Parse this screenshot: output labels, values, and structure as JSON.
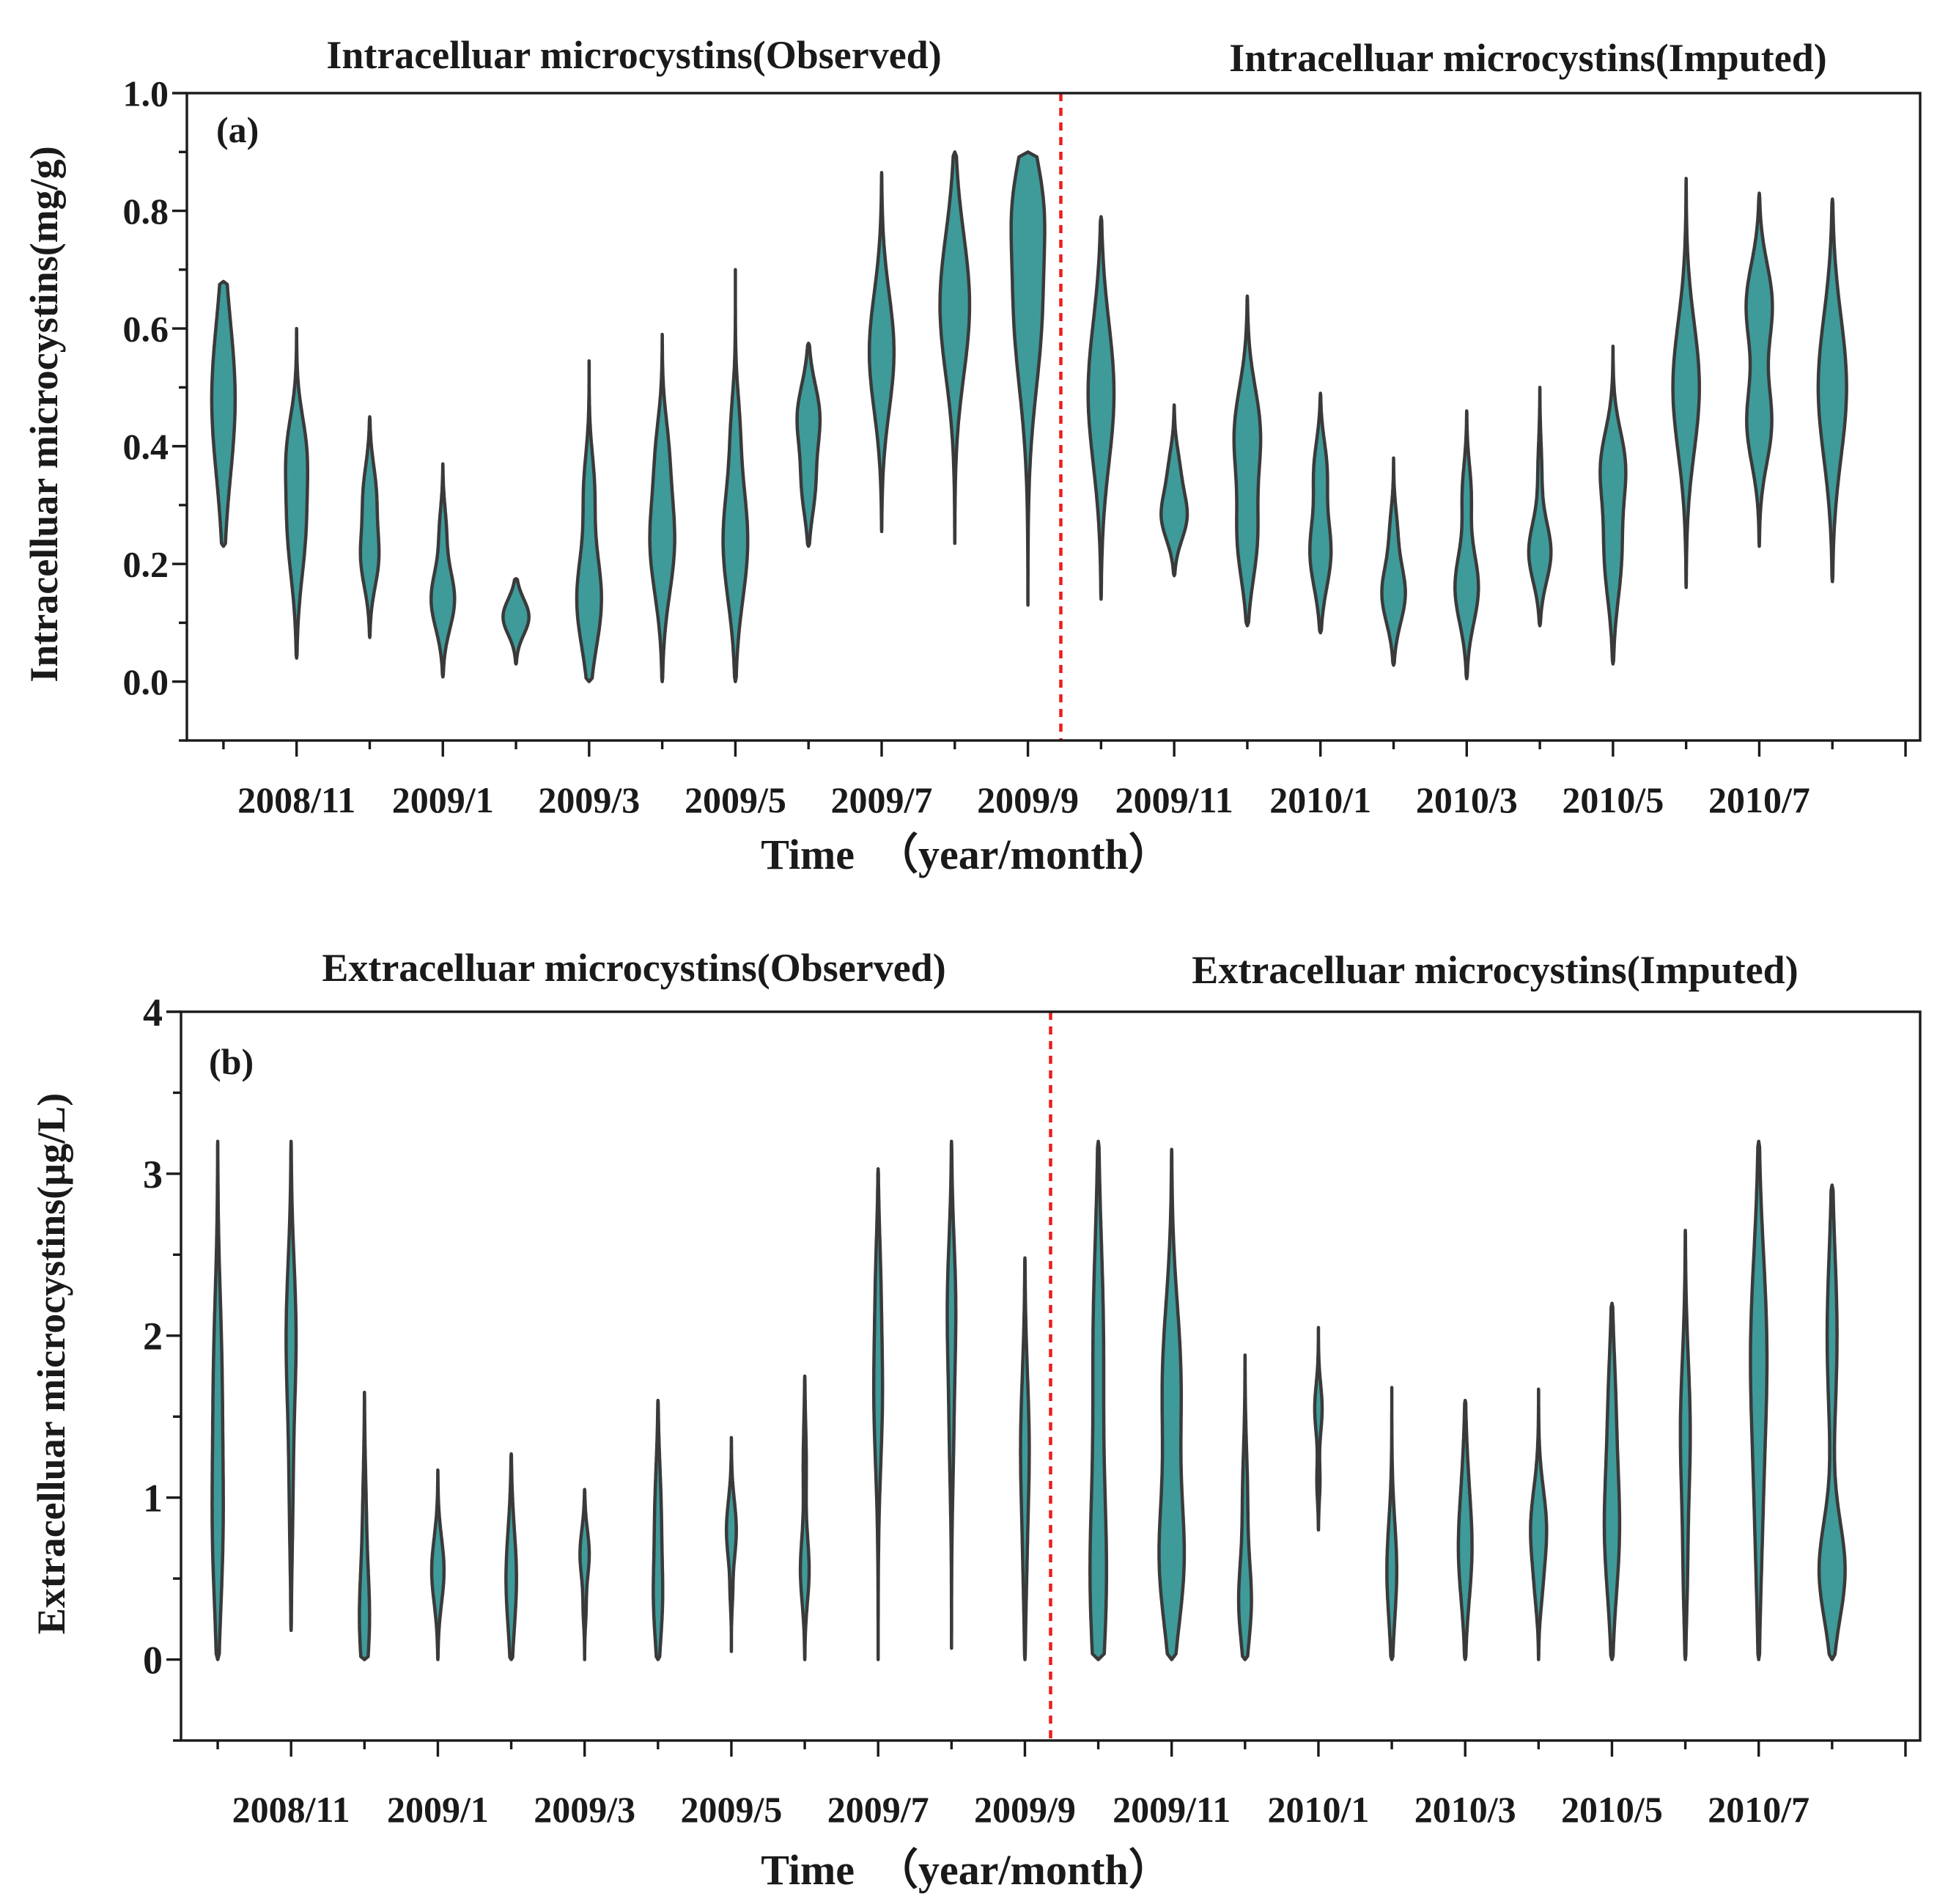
{
  "colors": {
    "violin_fill": "#3f9a9a",
    "violin_edge": "#3a3a3a",
    "divider": "#ee1c1c",
    "axis": "#1a1a1a"
  },
  "chart_data": [
    {
      "type": "violin",
      "panel_label": "(a)",
      "title_observed": "Intracelluar microcystins(Observed)",
      "title_imputed": "Intracelluar microcystins(Imputed)",
      "ylabel": "Intracelluar microcystins(mg/g)",
      "xlabel": "Time  （year/month）",
      "ylim": [
        -0.1,
        1.0
      ],
      "yticks": [
        0.0,
        0.2,
        0.4,
        0.6,
        0.8,
        1.0
      ],
      "ytick_labels": [
        "0.0",
        "0.2",
        "0.4",
        "0.6",
        "0.8",
        "1.0"
      ],
      "x_index_range": [
        -0.5,
        23.2
      ],
      "labeled_ticks": [
        {
          "i": 1,
          "label": "2008/11"
        },
        {
          "i": 3,
          "label": "2009/1"
        },
        {
          "i": 5,
          "label": "2009/3"
        },
        {
          "i": 7,
          "label": "2009/5"
        },
        {
          "i": 9,
          "label": "2009/7"
        },
        {
          "i": 11,
          "label": "2009/9"
        },
        {
          "i": 13,
          "label": "2009/11"
        },
        {
          "i": 15,
          "label": "2010/1"
        },
        {
          "i": 17,
          "label": "2010/3"
        },
        {
          "i": 19,
          "label": "2010/5"
        },
        {
          "i": 21,
          "label": "2010/7"
        }
      ],
      "divider_index": 11.45,
      "violins": [
        {
          "period": "2008/10",
          "min": 0.23,
          "max": 0.68,
          "peaks": [
            [
              0.48,
              0.38,
              0.13
            ]
          ]
        },
        {
          "period": "2008/11",
          "min": 0.04,
          "max": 0.6,
          "peaks": [
            [
              0.27,
              0.3,
              0.09
            ],
            [
              0.4,
              0.22,
              0.06
            ]
          ]
        },
        {
          "period": "2008/12",
          "min": 0.075,
          "max": 0.45,
          "peaks": [
            [
              0.21,
              0.28,
              0.05
            ],
            [
              0.32,
              0.2,
              0.05
            ]
          ]
        },
        {
          "period": "2009/1",
          "min": 0.008,
          "max": 0.37,
          "peaks": [
            [
              0.14,
              0.38,
              0.05
            ],
            [
              0.26,
              0.1,
              0.04
            ]
          ]
        },
        {
          "period": "2009/2",
          "min": 0.03,
          "max": 0.175,
          "peaks": [
            [
              0.11,
              0.42,
              0.03
            ]
          ]
        },
        {
          "period": "2009/3",
          "min": 0.0,
          "max": 0.545,
          "peaks": [
            [
              0.14,
              0.4,
              0.08
            ],
            [
              0.33,
              0.16,
              0.06
            ]
          ]
        },
        {
          "period": "2009/4",
          "min": 0.0,
          "max": 0.59,
          "peaks": [
            [
              0.24,
              0.4,
              0.09
            ],
            [
              0.4,
              0.14,
              0.06
            ]
          ]
        },
        {
          "period": "2009/5",
          "min": 0.0,
          "max": 0.7,
          "peaks": [
            [
              0.24,
              0.4,
              0.1
            ],
            [
              0.44,
              0.1,
              0.06
            ]
          ]
        },
        {
          "period": "2009/6",
          "min": 0.23,
          "max": 0.575,
          "peaks": [
            [
              0.45,
              0.36,
              0.055
            ],
            [
              0.33,
              0.2,
              0.05
            ]
          ]
        },
        {
          "period": "2009/7",
          "min": 0.255,
          "max": 0.865,
          "peaks": [
            [
              0.56,
              0.4,
              0.1
            ]
          ]
        },
        {
          "period": "2009/8",
          "min": 0.235,
          "max": 0.9,
          "peaks": [
            [
              0.64,
              0.48,
              0.12
            ]
          ]
        },
        {
          "period": "2009/9",
          "min": 0.13,
          "max": 0.9,
          "peaks": [
            [
              0.64,
              0.46,
              0.14
            ],
            [
              0.82,
              0.3,
              0.08
            ]
          ]
        },
        {
          "period": "2009/10",
          "min": 0.14,
          "max": 0.79,
          "peaks": [
            [
              0.49,
              0.42,
              0.12
            ]
          ]
        },
        {
          "period": "2009/11",
          "min": 0.18,
          "max": 0.47,
          "peaks": [
            [
              0.28,
              0.4,
              0.04
            ],
            [
              0.36,
              0.16,
              0.04
            ]
          ]
        },
        {
          "period": "2009/12",
          "min": 0.095,
          "max": 0.655,
          "peaks": [
            [
              0.24,
              0.3,
              0.07
            ],
            [
              0.42,
              0.42,
              0.08
            ]
          ]
        },
        {
          "period": "2010/1",
          "min": 0.083,
          "max": 0.49,
          "peaks": [
            [
              0.22,
              0.34,
              0.06
            ],
            [
              0.36,
              0.2,
              0.05
            ]
          ]
        },
        {
          "period": "2010/2",
          "min": 0.028,
          "max": 0.38,
          "peaks": [
            [
              0.15,
              0.38,
              0.05
            ],
            [
              0.26,
              0.1,
              0.04
            ]
          ]
        },
        {
          "period": "2010/3",
          "min": 0.005,
          "max": 0.46,
          "peaks": [
            [
              0.16,
              0.38,
              0.06
            ],
            [
              0.32,
              0.14,
              0.05
            ]
          ]
        },
        {
          "period": "2010/4",
          "min": 0.095,
          "max": 0.5,
          "peaks": [
            [
              0.22,
              0.36,
              0.05
            ],
            [
              0.36,
              0.06,
              0.05
            ]
          ]
        },
        {
          "period": "2010/5",
          "min": 0.03,
          "max": 0.57,
          "peaks": [
            [
              0.22,
              0.28,
              0.08
            ],
            [
              0.37,
              0.36,
              0.06
            ]
          ]
        },
        {
          "period": "2010/6",
          "min": 0.16,
          "max": 0.855,
          "peaks": [
            [
              0.5,
              0.43,
              0.11
            ]
          ]
        },
        {
          "period": "2010/7",
          "min": 0.23,
          "max": 0.83,
          "peaks": [
            [
              0.44,
              0.4,
              0.07
            ],
            [
              0.64,
              0.42,
              0.07
            ]
          ]
        },
        {
          "period": "2010/8",
          "min": 0.17,
          "max": 0.82,
          "peaks": [
            [
              0.5,
              0.46,
              0.12
            ]
          ]
        }
      ]
    },
    {
      "type": "violin",
      "panel_label": "(b)",
      "title_observed": "Extracelluar microcystins(Observed)",
      "title_imputed": "Extracelluar microcystins(Imputed)",
      "ylabel": "Extracelluar microcystins(µg/L)",
      "xlabel": "Time  （year/month）",
      "ylim": [
        -0.5,
        4.0
      ],
      "yticks": [
        0,
        1,
        2,
        3,
        4
      ],
      "ytick_labels": [
        "0",
        "1",
        "2",
        "3",
        "4"
      ],
      "x_index_range": [
        -0.5,
        23.2
      ],
      "labeled_ticks": [
        {
          "i": 1,
          "label": "2008/11"
        },
        {
          "i": 3,
          "label": "2009/1"
        },
        {
          "i": 5,
          "label": "2009/3"
        },
        {
          "i": 7,
          "label": "2009/5"
        },
        {
          "i": 9,
          "label": "2009/7"
        },
        {
          "i": 11,
          "label": "2009/9"
        },
        {
          "i": 13,
          "label": "2009/11"
        },
        {
          "i": 15,
          "label": "2010/1"
        },
        {
          "i": 17,
          "label": "2010/3"
        },
        {
          "i": 19,
          "label": "2010/5"
        },
        {
          "i": 21,
          "label": "2010/7"
        }
      ],
      "divider_index": 11.35,
      "violins": [
        {
          "period": "2008/10",
          "min": 0.0,
          "max": 3.2,
          "peaks": [
            [
              0.8,
              0.16,
              0.5
            ],
            [
              1.8,
              0.12,
              0.5
            ]
          ]
        },
        {
          "period": "2008/11",
          "min": 0.18,
          "max": 3.2,
          "peaks": [
            [
              2.0,
              0.16,
              0.45
            ],
            [
              1.0,
              0.05,
              0.4
            ]
          ]
        },
        {
          "period": "2008/12",
          "min": 0.0,
          "max": 1.65,
          "peaks": [
            [
              0.25,
              0.16,
              0.3
            ],
            [
              0.9,
              0.05,
              0.3
            ]
          ]
        },
        {
          "period": "2009/1",
          "min": 0.0,
          "max": 1.17,
          "peaks": [
            [
              0.55,
              0.2,
              0.2
            ]
          ]
        },
        {
          "period": "2009/2",
          "min": 0.0,
          "max": 1.27,
          "peaks": [
            [
              0.5,
              0.17,
              0.3
            ]
          ]
        },
        {
          "period": "2009/3",
          "min": 0.0,
          "max": 1.05,
          "peaks": [
            [
              0.65,
              0.15,
              0.15
            ],
            [
              0.3,
              0.04,
              0.1
            ]
          ]
        },
        {
          "period": "2009/4",
          "min": 0.0,
          "max": 1.6,
          "peaks": [
            [
              0.35,
              0.13,
              0.25
            ],
            [
              0.9,
              0.1,
              0.3
            ]
          ]
        },
        {
          "period": "2009/5",
          "min": 0.05,
          "max": 1.37,
          "peaks": [
            [
              0.8,
              0.16,
              0.18
            ],
            [
              0.4,
              0.03,
              0.1
            ]
          ]
        },
        {
          "period": "2009/6",
          "min": 0.0,
          "max": 1.75,
          "peaks": [
            [
              0.55,
              0.14,
              0.2
            ],
            [
              1.2,
              0.05,
              0.25
            ]
          ]
        },
        {
          "period": "2009/7",
          "min": 0.0,
          "max": 3.03,
          "peaks": [
            [
              1.65,
              0.14,
              0.45
            ],
            [
              2.4,
              0.05,
              0.3
            ]
          ]
        },
        {
          "period": "2009/8",
          "min": 0.07,
          "max": 3.2,
          "peaks": [
            [
              2.2,
              0.13,
              0.4
            ],
            [
              1.4,
              0.06,
              0.4
            ]
          ]
        },
        {
          "period": "2009/9",
          "min": 0.0,
          "max": 2.48,
          "peaks": [
            [
              1.3,
              0.14,
              0.45
            ],
            [
              0.5,
              0.03,
              0.3
            ]
          ]
        },
        {
          "period": "2009/10",
          "min": 0.0,
          "max": 3.2,
          "peaks": [
            [
              0.5,
              0.26,
              0.6
            ],
            [
              2.0,
              0.16,
              0.6
            ]
          ]
        },
        {
          "period": "2009/11",
          "min": 0.0,
          "max": 3.15,
          "peaks": [
            [
              0.6,
              0.38,
              0.4
            ],
            [
              1.7,
              0.3,
              0.5
            ]
          ]
        },
        {
          "period": "2009/12",
          "min": 0.0,
          "max": 1.88,
          "peaks": [
            [
              0.35,
              0.2,
              0.25
            ],
            [
              1.0,
              0.08,
              0.3
            ]
          ]
        },
        {
          "period": "2010/1",
          "min": 0.8,
          "max": 2.05,
          "peaks": [
            [
              1.55,
              0.12,
              0.15
            ],
            [
              1.1,
              0.05,
              0.12
            ]
          ]
        },
        {
          "period": "2010/2",
          "min": 0.0,
          "max": 1.68,
          "peaks": [
            [
              0.55,
              0.16,
              0.3
            ]
          ]
        },
        {
          "period": "2010/3",
          "min": 0.0,
          "max": 1.6,
          "peaks": [
            [
              0.65,
              0.2,
              0.3
            ],
            [
              1.1,
              0.06,
              0.3
            ]
          ]
        },
        {
          "period": "2010/4",
          "min": 0.0,
          "max": 1.67,
          "peaks": [
            [
              0.8,
              0.26,
              0.25
            ],
            [
              0.4,
              0.05,
              0.15
            ]
          ]
        },
        {
          "period": "2010/5",
          "min": 0.0,
          "max": 2.2,
          "peaks": [
            [
              0.8,
              0.24,
              0.4
            ],
            [
              1.6,
              0.1,
              0.35
            ]
          ]
        },
        {
          "period": "2010/6",
          "min": 0.0,
          "max": 2.65,
          "peaks": [
            [
              1.4,
              0.16,
              0.45
            ],
            [
              0.5,
              0.05,
              0.3
            ]
          ]
        },
        {
          "period": "2010/7",
          "min": 0.0,
          "max": 3.2,
          "peaks": [
            [
              1.9,
              0.26,
              0.6
            ],
            [
              0.8,
              0.08,
              0.5
            ]
          ]
        },
        {
          "period": "2010/8",
          "min": 0.0,
          "max": 2.93,
          "peaks": [
            [
              0.55,
              0.42,
              0.3
            ],
            [
              2.0,
              0.16,
              0.5
            ]
          ]
        }
      ]
    }
  ]
}
